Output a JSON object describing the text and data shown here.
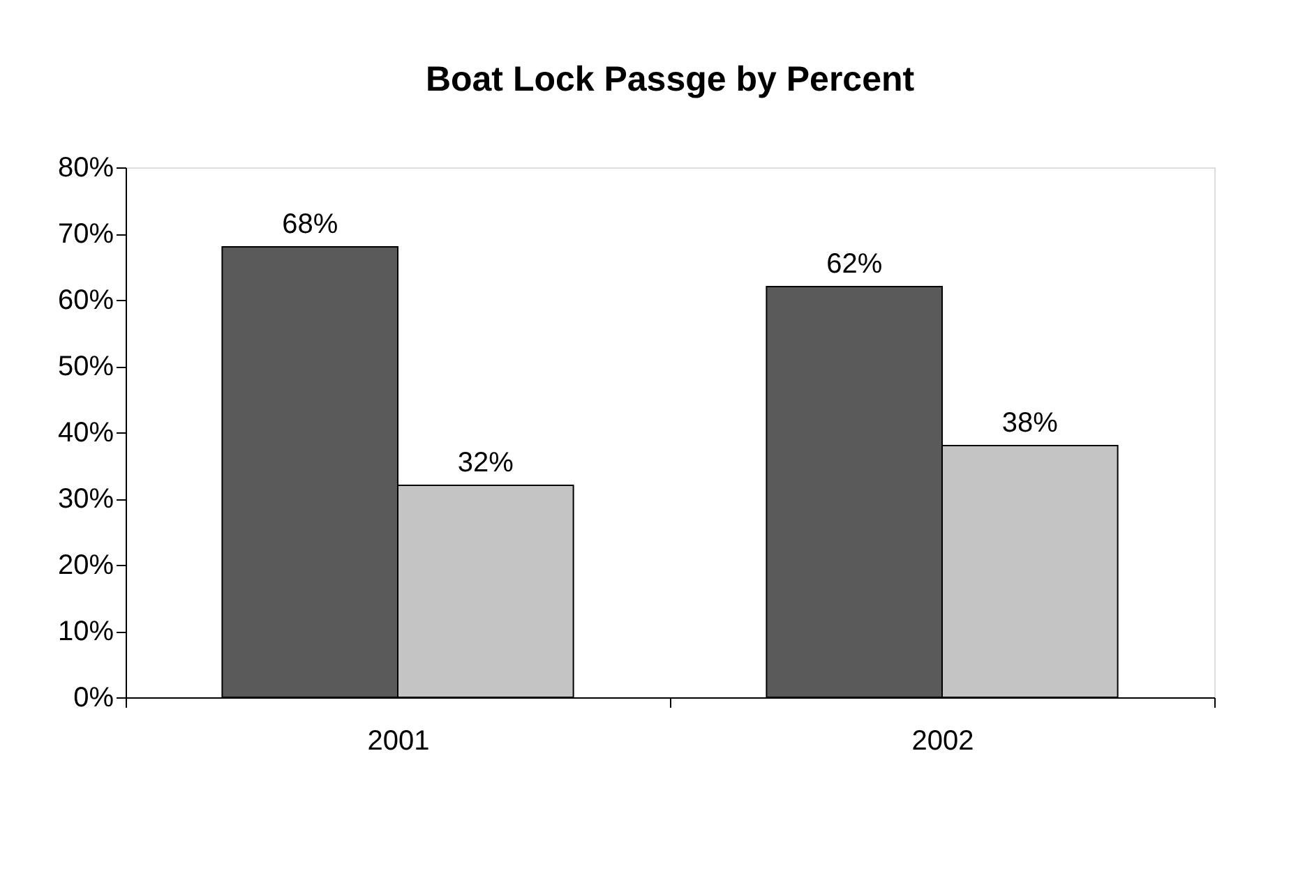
{
  "chart_data": {
    "type": "bar",
    "title": "Boat Lock Passge by Percent",
    "categories": [
      "2001",
      "2002"
    ],
    "series": [
      {
        "color": "#5a5a5a",
        "values": [
          68,
          62
        ],
        "value_labels": [
          "68%",
          "62%"
        ]
      },
      {
        "color": "#c4c4c4",
        "values": [
          32,
          38
        ],
        "value_labels": [
          "32%",
          "38%"
        ]
      }
    ],
    "ylim": [
      0,
      80
    ],
    "yticks": [
      {
        "value": 0,
        "label": "0%"
      },
      {
        "value": 10,
        "label": "10%"
      },
      {
        "value": 20,
        "label": "20%"
      },
      {
        "value": 30,
        "label": "30%"
      },
      {
        "value": 40,
        "label": "40%"
      },
      {
        "value": 50,
        "label": "50%"
      },
      {
        "value": 60,
        "label": "60%"
      },
      {
        "value": 70,
        "label": "70%"
      },
      {
        "value": 80,
        "label": "80%"
      }
    ],
    "grid": false
  }
}
